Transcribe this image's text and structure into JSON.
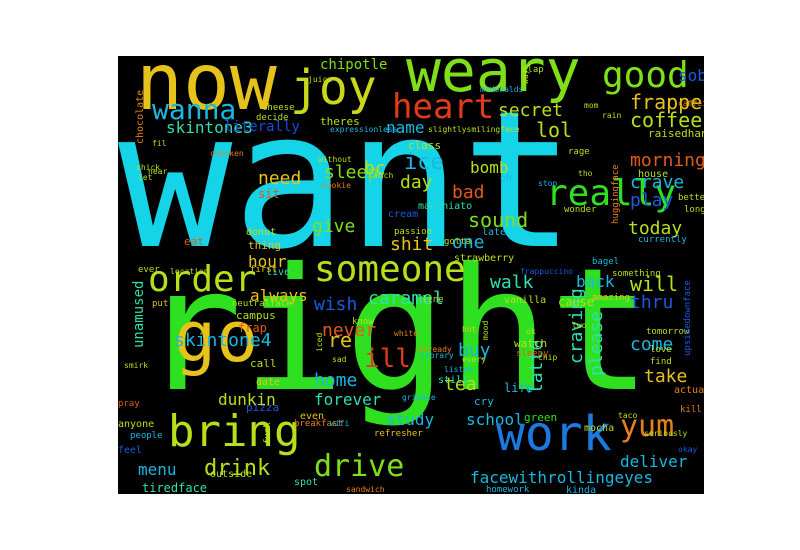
{
  "words": [
    {
      "text": "want",
      "color": "#16d4e8"
    },
    {
      "text": "right",
      "color": "#2ee01f"
    },
    {
      "text": "now",
      "color": "#e6c31a"
    },
    {
      "text": "weary",
      "color": "#7fe01a"
    },
    {
      "text": "joy",
      "color": "#c9d81a"
    },
    {
      "text": "good",
      "color": "#7fe01a"
    },
    {
      "text": "heart",
      "color": "#e23a1a"
    },
    {
      "text": "wanna",
      "color": "#1ab8e0"
    },
    {
      "text": "sob",
      "color": "#1a5ae0"
    },
    {
      "text": "frappe",
      "color": "#e6c31a"
    },
    {
      "text": "coffee",
      "color": "#b8e01a"
    },
    {
      "text": "chipotle",
      "color": "#7fe01a"
    },
    {
      "text": "secret",
      "color": "#b8e01a"
    },
    {
      "text": "lol",
      "color": "#b8e01a"
    },
    {
      "text": "skintone3",
      "color": "#2ee0b0"
    },
    {
      "text": "literally",
      "color": "#1a4ae0"
    },
    {
      "text": "name",
      "color": "#1ab8e0"
    },
    {
      "text": "ice",
      "color": "#1ab8e0"
    },
    {
      "text": "really",
      "color": "#2ee01f"
    },
    {
      "text": "morning",
      "color": "#e25a1a"
    },
    {
      "text": "crave",
      "color": "#1ab8e0"
    },
    {
      "text": "play",
      "color": "#1a5ae0"
    },
    {
      "text": "sleep",
      "color": "#7fe01a"
    },
    {
      "text": "need",
      "color": "#e6c31a"
    },
    {
      "text": "day",
      "color": "#b8e01a"
    },
    {
      "text": "bc",
      "color": "#b8e01a"
    },
    {
      "text": "bomb",
      "color": "#b8e01a"
    },
    {
      "text": "bad",
      "color": "#e25a1a"
    },
    {
      "text": "give",
      "color": "#7fe01a"
    },
    {
      "text": "sound",
      "color": "#7fe01a"
    },
    {
      "text": "today",
      "color": "#b8e01a"
    },
    {
      "text": "one",
      "color": "#1ab8e0"
    },
    {
      "text": "shit",
      "color": "#e6c31a"
    },
    {
      "text": "hour",
      "color": "#e6c31a"
    },
    {
      "text": "someone",
      "color": "#b8e01a"
    },
    {
      "text": "order",
      "color": "#b8e01a"
    },
    {
      "text": "will",
      "color": "#b8e01a"
    },
    {
      "text": "walk",
      "color": "#2ee0b0"
    },
    {
      "text": "back",
      "color": "#1ab8e0"
    },
    {
      "text": "thru",
      "color": "#1a5ae0"
    },
    {
      "text": "always",
      "color": "#e6c31a"
    },
    {
      "text": "caramel",
      "color": "#2ee0b0"
    },
    {
      "text": "wish",
      "color": "#1a5ae0"
    },
    {
      "text": "unamused",
      "color": "#2ee0b0"
    },
    {
      "text": "go",
      "color": "#e6c31a"
    },
    {
      "text": "skintone4",
      "color": "#1ab8e0"
    },
    {
      "text": "never",
      "color": "#e25a1a"
    },
    {
      "text": "re",
      "color": "#e6c31a"
    },
    {
      "text": "ill",
      "color": "#e23a1a"
    },
    {
      "text": "buy",
      "color": "#1ab8e0"
    },
    {
      "text": "craving",
      "color": "#2ee0b0"
    },
    {
      "text": "please",
      "color": "#2ee0b0"
    },
    {
      "text": "latte",
      "color": "#2ee0b0"
    },
    {
      "text": "come",
      "color": "#1ab8e0"
    },
    {
      "text": "take",
      "color": "#e6c31a"
    },
    {
      "text": "home",
      "color": "#1ab8e0"
    },
    {
      "text": "forever",
      "color": "#2ee0b0"
    },
    {
      "text": "tea",
      "color": "#b8e01a"
    },
    {
      "text": "dunkin",
      "color": "#b8e01a"
    },
    {
      "text": "study",
      "color": "#1ab8e0"
    },
    {
      "text": "school",
      "color": "#1ab8e0"
    },
    {
      "text": "bring",
      "color": "#b8e01a"
    },
    {
      "text": "work",
      "color": "#1a7ae0"
    },
    {
      "text": "yum",
      "color": "#e6801a"
    },
    {
      "text": "deliver",
      "color": "#1ab8e0"
    },
    {
      "text": "menu",
      "color": "#1ab8e0"
    },
    {
      "text": "drink",
      "color": "#b8e01a"
    },
    {
      "text": "drive",
      "color": "#7fe01a"
    },
    {
      "text": "facewithrollingeyes",
      "color": "#1ab8e0"
    },
    {
      "text": "tiredface",
      "color": "#2ee0b0"
    },
    {
      "text": "frap",
      "color": "#e25a1a"
    },
    {
      "text": "campus",
      "color": "#b8e01a"
    },
    {
      "text": "cause",
      "color": "#b8e01a"
    },
    {
      "text": "vanilla",
      "color": "#b8e01a"
    },
    {
      "text": "strawberry",
      "color": "#b8e01a"
    },
    {
      "text": "cream",
      "color": "#1a5ae0"
    },
    {
      "text": "macchiato",
      "color": "#2ee0b0"
    },
    {
      "text": "oh",
      "color": "#1ab8e0"
    },
    {
      "text": "late",
      "color": "#1ab8e0"
    },
    {
      "text": "sit",
      "color": "#e25a1a"
    },
    {
      "text": "donut",
      "color": "#b8e01a"
    },
    {
      "text": "thing",
      "color": "#e6c31a"
    },
    {
      "text": "eat",
      "color": "#e25a1a"
    },
    {
      "text": "ever",
      "color": "#b8e01a"
    },
    {
      "text": "live",
      "color": "#2ee0b0"
    },
    {
      "text": "first",
      "color": "#e6c31a"
    },
    {
      "text": "put",
      "color": "#e6c31a"
    },
    {
      "text": "call",
      "color": "#b8e01a"
    },
    {
      "text": "date",
      "color": "#e6c31a"
    },
    {
      "text": "pizza",
      "color": "#1a5ae0"
    },
    {
      "text": "even",
      "color": "#e6c31a"
    },
    {
      "text": "watch",
      "color": "#b8e01a"
    },
    {
      "text": "life",
      "color": "#1ab8e0"
    },
    {
      "text": "cry",
      "color": "#1ab8e0"
    },
    {
      "text": "mocha",
      "color": "#b8e01a"
    },
    {
      "text": "green",
      "color": "#2ee01f"
    },
    {
      "text": "still",
      "color": "#2ee0b0"
    },
    {
      "text": "feel",
      "color": "#1a5ae0"
    },
    {
      "text": "anyone",
      "color": "#b8e01a"
    },
    {
      "text": "pray",
      "color": "#e25a1a"
    },
    {
      "text": "actually",
      "color": "#e6801a"
    },
    {
      "text": "kill",
      "color": "#e6801a"
    },
    {
      "text": "tomorrow",
      "color": "#b8e01a"
    },
    {
      "text": "upsidedownface",
      "color": "#1a5ae0"
    },
    {
      "text": "love",
      "color": "#b8e01a"
    },
    {
      "text": "find",
      "color": "#b8e01a"
    },
    {
      "text": "currently",
      "color": "#1ab8e0"
    },
    {
      "text": "bagel",
      "color": "#1ab8e0"
    },
    {
      "text": "something",
      "color": "#b8e01a"
    },
    {
      "text": "amazing",
      "color": "#e6c31a"
    },
    {
      "text": "house",
      "color": "#b8e01a"
    },
    {
      "text": "long",
      "color": "#b8e01a"
    },
    {
      "text": "better",
      "color": "#b8e01a"
    },
    {
      "text": "raisedhands",
      "color": "#b8e01a"
    },
    {
      "text": "wonder",
      "color": "#b8e01a"
    },
    {
      "text": "huggingface",
      "color": "#e6801a"
    },
    {
      "text": "gotta",
      "color": "#b8e01a"
    },
    {
      "text": "passion",
      "color": "#b8e01a"
    },
    {
      "text": "class",
      "color": "#b8e01a"
    },
    {
      "text": "theres",
      "color": "#b8e01a"
    },
    {
      "text": "cheese",
      "color": "#b8e01a"
    },
    {
      "text": "decide",
      "color": "#b8e01a"
    },
    {
      "text": "chocolate",
      "color": "#e6801a"
    },
    {
      "text": "chicken",
      "color": "#e6801a"
    },
    {
      "text": "without",
      "color": "#b8e01a"
    },
    {
      "text": "cookie",
      "color": "#e6801a"
    },
    {
      "text": "slightlysmilingface",
      "color": "#b8e01a"
    },
    {
      "text": "expressionless",
      "color": "#1ab8e0"
    },
    {
      "text": "mcdonalds",
      "color": "#1ab8e0"
    },
    {
      "text": "juice",
      "color": "#b8e01a"
    },
    {
      "text": "clap",
      "color": "#b8e01a"
    },
    {
      "text": "rage",
      "color": "#b8e01a"
    },
    {
      "text": "stop",
      "color": "#1ab8e0"
    },
    {
      "text": "fuck",
      "color": "#b8e01a"
    },
    {
      "text": "breakfast",
      "color": "#e6801a"
    },
    {
      "text": "wifi",
      "color": "#1ab8e0"
    },
    {
      "text": "refresher",
      "color": "#e6c31a"
    },
    {
      "text": "sandwich",
      "color": "#e6801a"
    },
    {
      "text": "homework",
      "color": "#1ab8e0"
    },
    {
      "text": "kinda",
      "color": "#1ab8e0"
    },
    {
      "text": "outside",
      "color": "#b8e01a"
    },
    {
      "text": "spot",
      "color": "#2ee0b0"
    },
    {
      "text": "people",
      "color": "#1ab8e0"
    },
    {
      "text": "library",
      "color": "#1ab8e0"
    },
    {
      "text": "hot",
      "color": "#e6c31a"
    },
    {
      "text": "line",
      "color": "#b8e01a"
    },
    {
      "text": "sleepy",
      "color": "#e25a1a"
    },
    {
      "text": "listen",
      "color": "#1ab8e0"
    },
    {
      "text": "every",
      "color": "#b8e01a"
    },
    {
      "text": "two",
      "color": "#b8e01a"
    },
    {
      "text": "ok",
      "color": "#b8e01a"
    },
    {
      "text": "mood",
      "color": "#b8e01a"
    },
    {
      "text": "already",
      "color": "#e6801a"
    },
    {
      "text": "white",
      "color": "#e6801a"
    },
    {
      "text": "iced",
      "color": "#b8e01a"
    },
    {
      "text": "sad",
      "color": "#b8e01a"
    },
    {
      "text": "know",
      "color": "#b8e01a"
    },
    {
      "text": "neutralface",
      "color": "#b8e01a"
    },
    {
      "text": "location",
      "color": "#b8e01a"
    },
    {
      "text": "chick",
      "color": "#b8e01a"
    },
    {
      "text": "let",
      "color": "#b8e01a"
    },
    {
      "text": "much",
      "color": "#b8e01a"
    },
    {
      "text": "fil",
      "color": "#b8e01a"
    },
    {
      "text": "near",
      "color": "#b8e01a"
    },
    {
      "text": "smirk",
      "color": "#b8e01a"
    },
    {
      "text": "taco",
      "color": "#b8e01a"
    },
    {
      "text": "seriously",
      "color": "#b8e01a"
    },
    {
      "text": "okay",
      "color": "#1a5ae0"
    },
    {
      "text": "grimace",
      "color": "#1ab8e0"
    },
    {
      "text": "caffeine",
      "color": "#e6801a"
    },
    {
      "text": "mom",
      "color": "#b8e01a"
    },
    {
      "text": "rain",
      "color": "#b8e01a"
    },
    {
      "text": "way",
      "color": "#b8e01a"
    },
    {
      "text": "tho",
      "color": "#b8e01a"
    },
    {
      "text": "frappuccino",
      "color": "#1a5ae0"
    },
    {
      "text": "chip",
      "color": "#b8e01a"
    }
  ]
}
